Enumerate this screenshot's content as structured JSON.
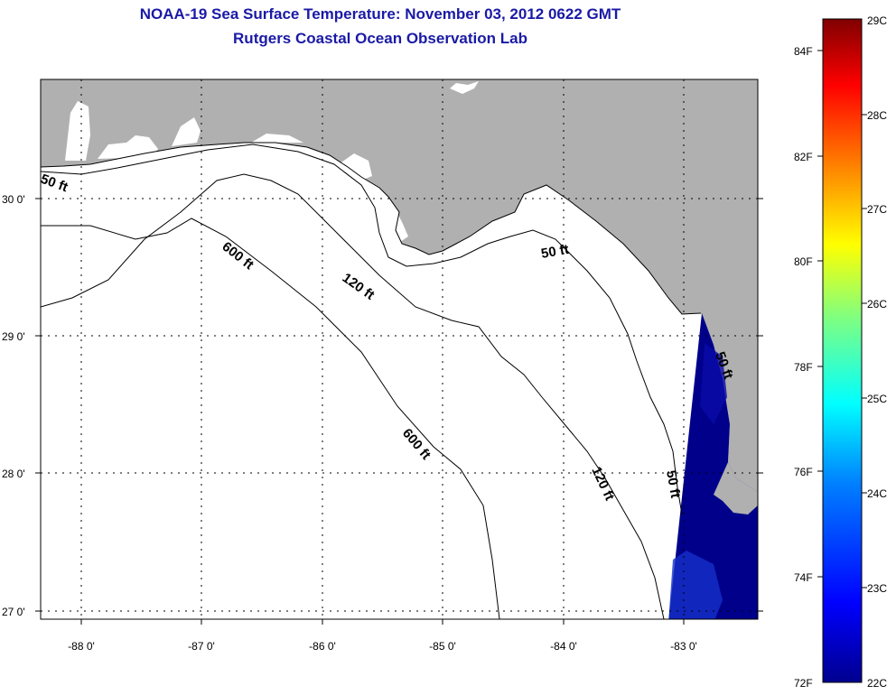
{
  "header": {
    "title": "NOAA-19 Sea Surface Temperature:  November 03, 2012 0622 GMT",
    "subtitle": "Rutgers Coastal Ocean Observation Lab"
  },
  "map": {
    "longitude_labels": [
      "-88 0'",
      "-87 0'",
      "-86 0'",
      "-85 0'",
      "-84 0'",
      "-83 0'"
    ],
    "latitude_labels": [
      "30 0'",
      "29 0'",
      "28 0'",
      "27 0'"
    ],
    "contour_labels": [
      "50 ft",
      "600 ft",
      "120 ft",
      "50 ft",
      "600 ft",
      "120 ft",
      "50 ft",
      "50 ft"
    ],
    "colors": {
      "land": "#b0b0b0",
      "ocean": "#ffffff",
      "sst_cold": "#00008b"
    }
  },
  "colorbar": {
    "fahrenheit_labels": [
      "84F",
      "82F",
      "80F",
      "78F",
      "76F",
      "74F",
      "72F"
    ],
    "celsius_labels": [
      "29C",
      "28C",
      "27C",
      "26C",
      "25C",
      "24C",
      "23C",
      "22C"
    ],
    "colors": [
      "#00008f",
      "#0000ff",
      "#0080ff",
      "#00ffff",
      "#80ff80",
      "#ffff00",
      "#ff8000",
      "#ff0000",
      "#800000"
    ]
  }
}
